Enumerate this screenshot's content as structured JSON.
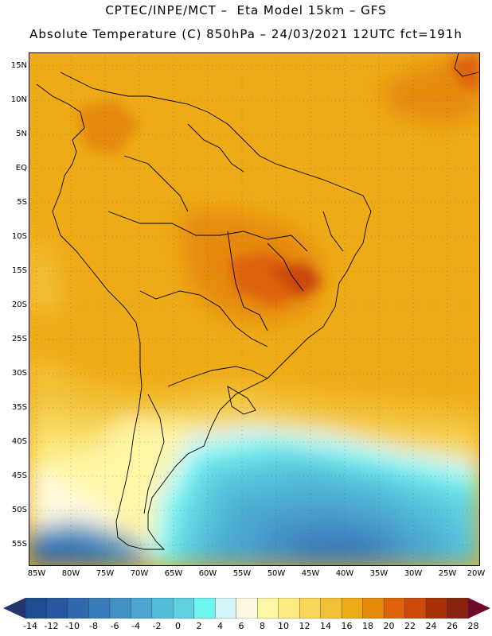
{
  "header": {
    "line1": "CPTEC/INPE/MCT –  Eta Model 15km – GFS",
    "line2": "Absolute Temperature (C) 850hPa – 24/03/2021 12UTC fct=191h"
  },
  "map": {
    "lat_labels": [
      "15N",
      "10N",
      "5N",
      "EQ",
      "5S",
      "10S",
      "15S",
      "20S",
      "25S",
      "30S",
      "35S",
      "40S",
      "45S",
      "50S",
      "55S"
    ],
    "lon_labels": [
      "85W",
      "80W",
      "75W",
      "70W",
      "65W",
      "60W",
      "55W",
      "50W",
      "45W",
      "40W",
      "35W",
      "30W",
      "25W",
      "20W"
    ]
  },
  "colorbar": {
    "labels": [
      "-14",
      "-12",
      "-10",
      "-8",
      "-6",
      "-4",
      "-2",
      "0",
      "2",
      "4",
      "6",
      "8",
      "10",
      "12",
      "14",
      "16",
      "18",
      "20",
      "22",
      "24",
      "26",
      "28"
    ],
    "colors": [
      "#1c4c92",
      "#27589f",
      "#3068ad",
      "#3b7cbb",
      "#4490c4",
      "#4aa6cf",
      "#52bcd9",
      "#5fd0e0",
      "#6ff5f0",
      "#d4f6fb",
      "#fffadf",
      "#fff6a6",
      "#fcea7f",
      "#f7d65a",
      "#f2c139",
      "#eeab17",
      "#e68a0d",
      "#dd6409",
      "#c94a0a",
      "#a83208",
      "#882211"
    ],
    "underflow_color": "#23346e",
    "overflow_color": "#6e0a25"
  }
}
